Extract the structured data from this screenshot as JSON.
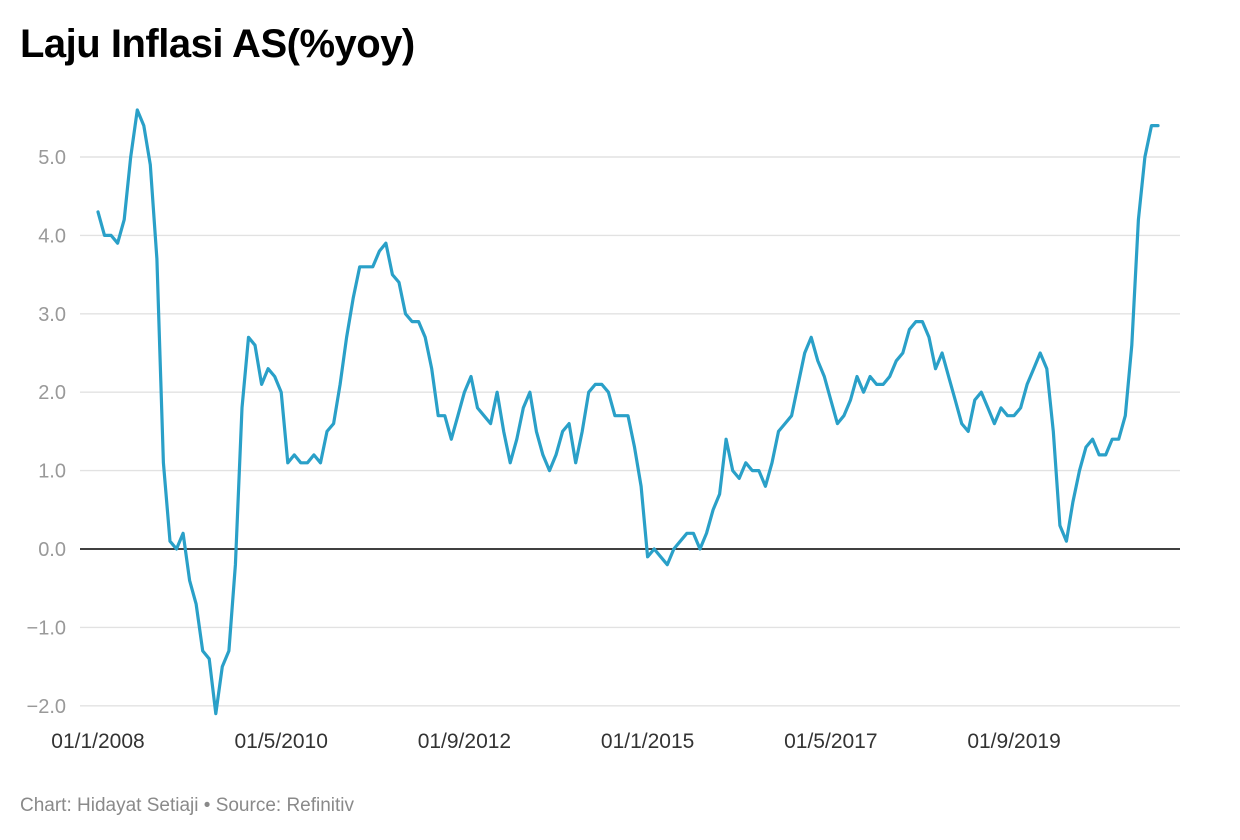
{
  "title": "Laju Inflasi AS(%yoy)",
  "footer": {
    "chart_by": "Chart: Hidayat Setiaji",
    "separator": "•",
    "source": "Source: Refinitiv"
  },
  "colors": {
    "line": "#2aa0c8",
    "grid": "#e2e2e2",
    "zero_line": "#000000"
  },
  "chart_data": {
    "type": "line",
    "title": "Laju Inflasi AS(%yoy)",
    "xlabel": "",
    "ylabel": "",
    "ylim": [
      -2.2,
      5.8
    ],
    "yticks": [
      5.0,
      4.0,
      3.0,
      2.0,
      1.0,
      0.0,
      -1.0,
      -2.0
    ],
    "ytick_labels": [
      "5.0",
      "4.0",
      "3.0",
      "2.0",
      "1.0",
      "0.0",
      "−1.0",
      "−2.0"
    ],
    "xtick_labels": [
      "01/1/2008",
      "01/5/2010",
      "01/9/2012",
      "01/1/2015",
      "01/5/2017",
      "01/9/2019"
    ],
    "grid": true,
    "legend": "none",
    "frequency": "monthly",
    "x_start": "01/1/2008",
    "x_end": "01/6/2021",
    "series": [
      {
        "name": "",
        "values": [
          4.3,
          4.0,
          4.0,
          3.9,
          4.2,
          5.0,
          5.6,
          5.4,
          4.9,
          3.7,
          1.1,
          0.1,
          0.0,
          0.2,
          -0.4,
          -0.7,
          -1.3,
          -1.4,
          -2.1,
          -1.5,
          -1.3,
          -0.2,
          1.8,
          2.7,
          2.6,
          2.1,
          2.3,
          2.2,
          2.0,
          1.1,
          1.2,
          1.1,
          1.1,
          1.2,
          1.1,
          1.5,
          1.6,
          2.1,
          2.7,
          3.2,
          3.6,
          3.6,
          3.6,
          3.8,
          3.9,
          3.5,
          3.4,
          3.0,
          2.9,
          2.9,
          2.7,
          2.3,
          1.7,
          1.7,
          1.4,
          1.7,
          2.0,
          2.2,
          1.8,
          1.7,
          1.6,
          2.0,
          1.5,
          1.1,
          1.4,
          1.8,
          2.0,
          1.5,
          1.2,
          1.0,
          1.2,
          1.5,
          1.6,
          1.1,
          1.5,
          2.0,
          2.1,
          2.1,
          2.0,
          1.7,
          1.7,
          1.7,
          1.3,
          0.8,
          -0.1,
          0.0,
          -0.1,
          -0.2,
          0.0,
          0.1,
          0.2,
          0.2,
          0.0,
          0.2,
          0.5,
          0.7,
          1.4,
          1.0,
          0.9,
          1.1,
          1.0,
          1.0,
          0.8,
          1.1,
          1.5,
          1.6,
          1.7,
          2.1,
          2.5,
          2.7,
          2.4,
          2.2,
          1.9,
          1.6,
          1.7,
          1.9,
          2.2,
          2.0,
          2.2,
          2.1,
          2.1,
          2.2,
          2.4,
          2.5,
          2.8,
          2.9,
          2.9,
          2.7,
          2.3,
          2.5,
          2.2,
          1.9,
          1.6,
          1.5,
          1.9,
          2.0,
          1.8,
          1.6,
          1.8,
          1.7,
          1.7,
          1.8,
          2.1,
          2.3,
          2.5,
          2.3,
          1.5,
          0.3,
          0.1,
          0.6,
          1.0,
          1.3,
          1.4,
          1.2,
          1.2,
          1.4,
          1.4,
          1.7,
          2.6,
          4.2,
          5.0,
          5.4,
          5.4
        ]
      }
    ]
  }
}
